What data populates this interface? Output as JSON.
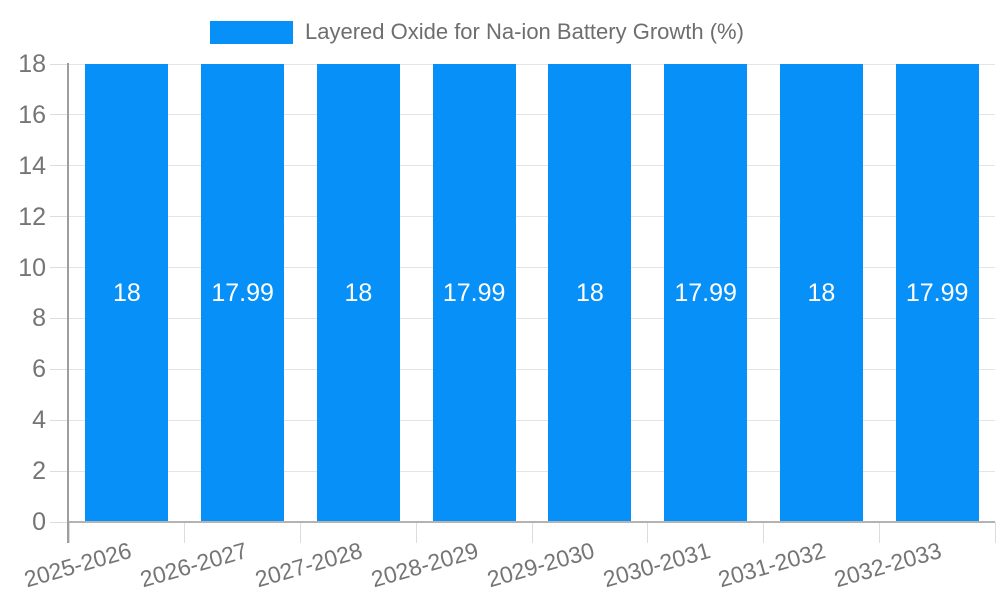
{
  "legend": {
    "label": "Layered Oxide for Na-ion Battery Growth (%)"
  },
  "colors": {
    "bar": "#0690f8",
    "grid": "#e4e4e4",
    "tick": "#dcdcdc",
    "axis_line": "#9e9e9e",
    "baseline": "#b3b3b3",
    "axis_text": "#757575",
    "legend_text": "#6e6e6e",
    "bar_label": "#ffffff"
  },
  "chart_data": {
    "type": "bar",
    "title": "Layered Oxide for Na-ion Battery Growth (%)",
    "legend_position": "top",
    "grid": true,
    "categories": [
      "2025-2026",
      "2026-2027",
      "2027-2028",
      "2028-2029",
      "2029-2030",
      "2030-2031",
      "2031-2032",
      "2032-2033"
    ],
    "series": [
      {
        "name": "Layered Oxide for Na-ion Battery Growth (%)",
        "values": [
          18,
          17.99,
          18,
          17.99,
          18,
          17.99,
          18,
          17.99
        ]
      }
    ],
    "bar_labels": [
      "18",
      "17.99",
      "18",
      "17.99",
      "18",
      "17.99",
      "18",
      "17.99"
    ],
    "xlabel": "",
    "ylabel": "",
    "ylim": [
      0,
      18
    ],
    "yticks": [
      0,
      2,
      4,
      6,
      8,
      10,
      12,
      14,
      16,
      18
    ]
  }
}
